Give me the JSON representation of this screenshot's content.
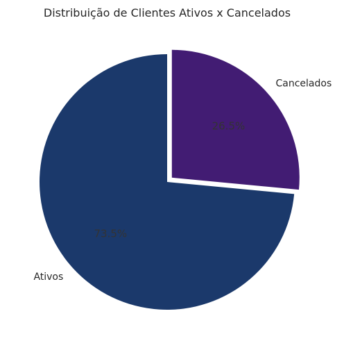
{
  "chart_data": {
    "type": "pie",
    "title": "Distribuição de Clientes Ativos x Cancelados",
    "categories": [
      "Ativos",
      "Cancelados"
    ],
    "values": [
      73.5,
      26.5
    ],
    "percent_labels": [
      "73.5%",
      "26.5%"
    ],
    "colors": [
      "#1b396b",
      "#421c73"
    ],
    "explode": [
      0,
      0.05
    ],
    "start_angle": 90,
    "direction": "counterclockwise"
  }
}
